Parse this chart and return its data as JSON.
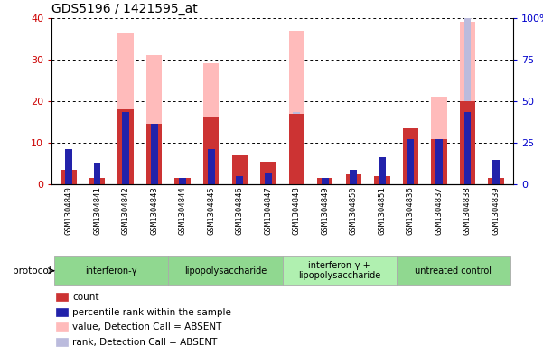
{
  "title": "GDS5196 / 1421595_at",
  "samples": [
    "GSM1304840",
    "GSM1304841",
    "GSM1304842",
    "GSM1304843",
    "GSM1304844",
    "GSM1304845",
    "GSM1304846",
    "GSM1304847",
    "GSM1304848",
    "GSM1304849",
    "GSM1304850",
    "GSM1304851",
    "GSM1304836",
    "GSM1304837",
    "GSM1304838",
    "GSM1304839"
  ],
  "absent_count_values": [
    3.5,
    1.5,
    36.5,
    31.0,
    1.5,
    29.0,
    7.0,
    5.5,
    37.0,
    1.5,
    2.5,
    2.0,
    13.5,
    21.0,
    39.0,
    1.5
  ],
  "absent_rank_values": [
    21.25,
    12.5,
    43.75,
    36.25,
    3.75,
    40.0,
    5.0,
    7.5,
    43.75,
    3.75,
    8.75,
    16.25,
    27.5,
    27.5,
    100.0,
    15.0
  ],
  "count_values": [
    3.5,
    1.5,
    18.0,
    14.5,
    1.5,
    16.0,
    7.0,
    5.5,
    17.0,
    1.5,
    2.5,
    2.0,
    13.5,
    11.0,
    20.0,
    1.5
  ],
  "rank_values": [
    21.25,
    12.5,
    43.75,
    36.25,
    3.75,
    21.25,
    5.0,
    7.5,
    0.0,
    3.75,
    8.75,
    16.25,
    27.5,
    27.5,
    43.75,
    15.0
  ],
  "protocols": [
    {
      "label": "interferon-γ",
      "start": 0,
      "end": 4,
      "color": "#90d890"
    },
    {
      "label": "lipopolysaccharide",
      "start": 4,
      "end": 8,
      "color": "#90d890"
    },
    {
      "label": "interferon-γ +\nlipopolysaccharide",
      "start": 8,
      "end": 12,
      "color": "#b0f0b0"
    },
    {
      "label": "untreated control",
      "start": 12,
      "end": 16,
      "color": "#90d890"
    }
  ],
  "left_ylim": [
    0,
    40
  ],
  "right_ylim": [
    0,
    100
  ],
  "left_yticks": [
    0,
    10,
    20,
    30,
    40
  ],
  "right_yticks": [
    0,
    25,
    50,
    75,
    100
  ],
  "left_yticklabels": [
    "0",
    "10",
    "20",
    "30",
    "40"
  ],
  "right_yticklabels": [
    "0",
    "25",
    "50",
    "75",
    "100%"
  ],
  "left_tick_color": "#cc0000",
  "right_tick_color": "#0000cc",
  "bar_color_count": "#cc3333",
  "bar_color_rank": "#2222aa",
  "bar_color_absent_count": "#ffbbbb",
  "bar_color_absent_rank": "#bbbbdd",
  "legend_items": [
    {
      "label": "count",
      "color": "#cc3333"
    },
    {
      "label": "percentile rank within the sample",
      "color": "#2222aa"
    },
    {
      "label": "value, Detection Call = ABSENT",
      "color": "#ffbbbb"
    },
    {
      "label": "rank, Detection Call = ABSENT",
      "color": "#bbbbdd"
    }
  ]
}
